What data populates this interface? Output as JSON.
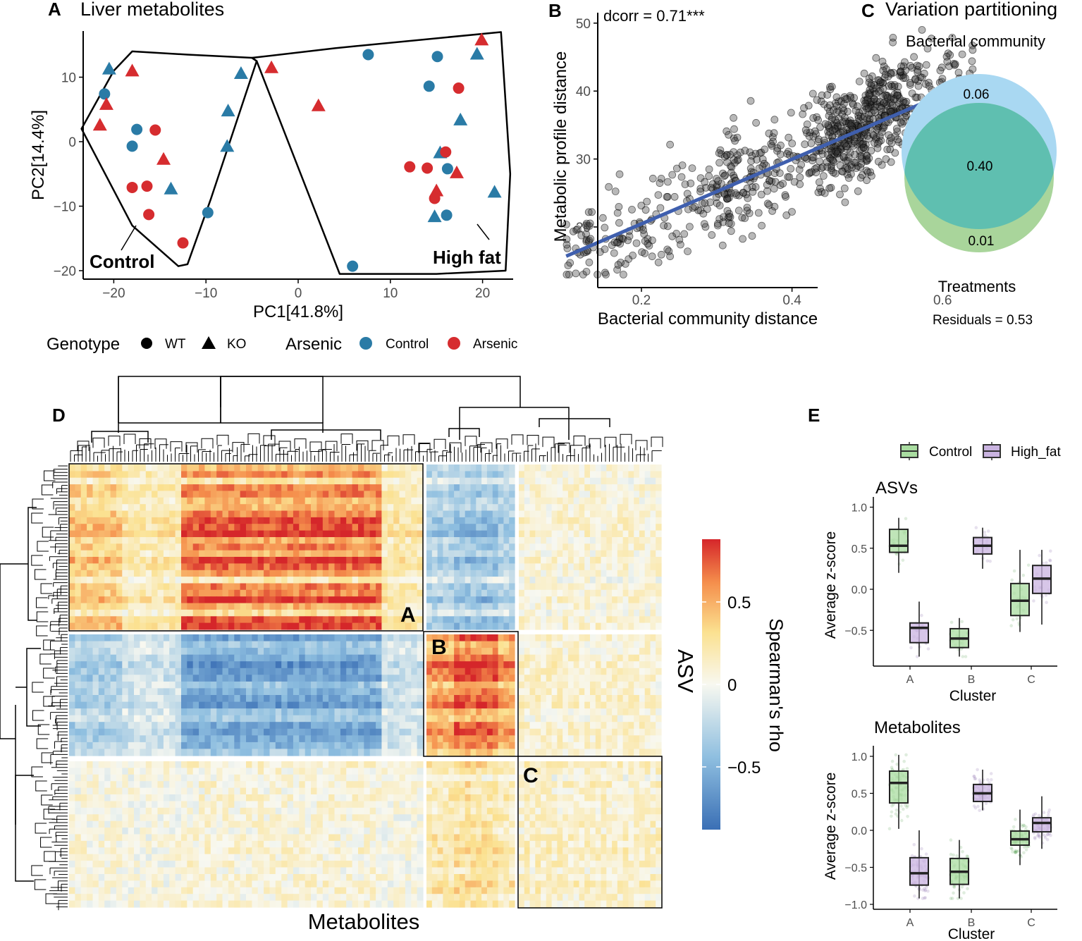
{
  "chart_data": [
    {
      "panel": "A",
      "type": "scatter",
      "title": "Liver metabolites",
      "xlabel": "PC1[41.8%]",
      "ylabel": "PC2[14.4%]",
      "xlim": [
        -24,
        24
      ],
      "ylim": [
        -21,
        17
      ],
      "xticks": [
        -20,
        -10,
        0,
        10,
        20
      ],
      "yticks": [
        -20,
        -10,
        0,
        10
      ],
      "hull_labels": [
        "Control",
        "High fat"
      ],
      "hulls": [
        [
          [
            -23.5,
            2
          ],
          [
            -20,
            11
          ],
          [
            -18,
            14
          ],
          [
            -12,
            13.5
          ],
          [
            -5,
            13
          ],
          [
            -4.5,
            12.5
          ],
          [
            -9.5,
            -9
          ],
          [
            -12,
            -19
          ],
          [
            -13,
            -19.3
          ],
          [
            -18,
            -13
          ],
          [
            -23.5,
            2
          ]
        ],
        [
          [
            -5,
            13
          ],
          [
            -4.5,
            12.5
          ],
          [
            4.5,
            -20.5
          ],
          [
            15,
            -20.5
          ],
          [
            22.5,
            -20
          ],
          [
            23,
            -5
          ],
          [
            22,
            17
          ],
          [
            4,
            14.5
          ],
          [
            -5,
            13
          ]
        ]
      ],
      "points": [
        {
          "x": -20.5,
          "y": 11.3,
          "genotype": "KO",
          "arsenic": "Control"
        },
        {
          "x": -18,
          "y": 11,
          "genotype": "KO",
          "arsenic": "Arsenic"
        },
        {
          "x": -21,
          "y": 7.4,
          "genotype": "WT",
          "arsenic": "Control"
        },
        {
          "x": -20.8,
          "y": 5.8,
          "genotype": "KO",
          "arsenic": "Arsenic"
        },
        {
          "x": -21.5,
          "y": 2.6,
          "genotype": "KO",
          "arsenic": "Arsenic"
        },
        {
          "x": -17.5,
          "y": 1.9,
          "genotype": "WT",
          "arsenic": "Control"
        },
        {
          "x": -15.5,
          "y": 1.8,
          "genotype": "WT",
          "arsenic": "Arsenic"
        },
        {
          "x": -18,
          "y": -0.7,
          "genotype": "WT",
          "arsenic": "Control"
        },
        {
          "x": -14.6,
          "y": -2.7,
          "genotype": "KO",
          "arsenic": "Arsenic"
        },
        {
          "x": -18,
          "y": -7.1,
          "genotype": "WT",
          "arsenic": "Arsenic"
        },
        {
          "x": -16.4,
          "y": -6.9,
          "genotype": "WT",
          "arsenic": "Arsenic"
        },
        {
          "x": -13.8,
          "y": -7.3,
          "genotype": "KO",
          "arsenic": "Control"
        },
        {
          "x": -16.2,
          "y": -11.3,
          "genotype": "WT",
          "arsenic": "Arsenic"
        },
        {
          "x": -9.8,
          "y": -11,
          "genotype": "WT",
          "arsenic": "Control"
        },
        {
          "x": -12.5,
          "y": -15.7,
          "genotype": "WT",
          "arsenic": "Arsenic"
        },
        {
          "x": -6.2,
          "y": 10.6,
          "genotype": "KO",
          "arsenic": "Control"
        },
        {
          "x": -7.6,
          "y": 4.8,
          "genotype": "KO",
          "arsenic": "Control"
        },
        {
          "x": -7.7,
          "y": -0.7,
          "genotype": "KO",
          "arsenic": "Control"
        },
        {
          "x": -2.9,
          "y": 11.5,
          "genotype": "KO",
          "arsenic": "Arsenic"
        },
        {
          "x": 2.2,
          "y": 5.6,
          "genotype": "KO",
          "arsenic": "Arsenic"
        },
        {
          "x": 7.6,
          "y": 13.5,
          "genotype": "WT",
          "arsenic": "Control"
        },
        {
          "x": 15.1,
          "y": 13.2,
          "genotype": "WT",
          "arsenic": "Control"
        },
        {
          "x": 14.2,
          "y": 8.6,
          "genotype": "WT",
          "arsenic": "Control"
        },
        {
          "x": 17.4,
          "y": 8.3,
          "genotype": "WT",
          "arsenic": "Arsenic"
        },
        {
          "x": 19.4,
          "y": 13.6,
          "genotype": "KO",
          "arsenic": "Control"
        },
        {
          "x": 19.9,
          "y": 15.8,
          "genotype": "KO",
          "arsenic": "Arsenic"
        },
        {
          "x": 17.6,
          "y": 3.4,
          "genotype": "KO",
          "arsenic": "Control"
        },
        {
          "x": 15.4,
          "y": -1.7,
          "genotype": "KO",
          "arsenic": "Control"
        },
        {
          "x": 16,
          "y": -1.6,
          "genotype": "WT",
          "arsenic": "Arsenic"
        },
        {
          "x": 12.1,
          "y": -3.9,
          "genotype": "WT",
          "arsenic": "Arsenic"
        },
        {
          "x": 14,
          "y": -4.1,
          "genotype": "WT",
          "arsenic": "Arsenic"
        },
        {
          "x": 16.2,
          "y": -4.2,
          "genotype": "WT",
          "arsenic": "Control"
        },
        {
          "x": 17.2,
          "y": -4.8,
          "genotype": "KO",
          "arsenic": "Arsenic"
        },
        {
          "x": 15,
          "y": -7.6,
          "genotype": "KO",
          "arsenic": "Arsenic"
        },
        {
          "x": 14.8,
          "y": -8.8,
          "genotype": "WT",
          "arsenic": "Arsenic"
        },
        {
          "x": 21.3,
          "y": -7.8,
          "genotype": "KO",
          "arsenic": "Control"
        },
        {
          "x": 14.8,
          "y": -11.6,
          "genotype": "KO",
          "arsenic": "Control"
        },
        {
          "x": 16.1,
          "y": -11.4,
          "genotype": "WT",
          "arsenic": "Control"
        },
        {
          "x": 5.9,
          "y": -19.3,
          "genotype": "WT",
          "arsenic": "Control"
        }
      ],
      "legend": {
        "genotype_title": "Genotype",
        "genotype_items": [
          "WT",
          "KO"
        ],
        "arsenic_title": "Arsenic",
        "arsenic_items": [
          "Control",
          "Arsenic"
        ],
        "colors": {
          "Control": "#2a7ba6",
          "Arsenic": "#d62c2f"
        }
      }
    },
    {
      "panel": "B",
      "type": "scatter",
      "annotation": "dcorr = 0.71***",
      "xlabel": "Bacterial community distance",
      "ylabel": "Metabolic profile distance",
      "xlim": [
        0.08,
        0.66
      ],
      "ylim": [
        12,
        51
      ],
      "xticks": [
        0.2,
        0.4,
        0.6
      ],
      "yticks": [
        20,
        30,
        40,
        50
      ],
      "fit_line": {
        "x": [
          0.1,
          0.63
        ],
        "y": [
          15.7,
          40.9
        ],
        "color": "#3f5fae"
      },
      "point_count": 900,
      "point_color": "#333333"
    },
    {
      "panel": "C",
      "type": "venn",
      "title": "Variation partitioning",
      "set_labels": [
        "Bacterial community",
        "Treatments"
      ],
      "values": {
        "bacterial_only": 0.06,
        "shared": 0.4,
        "treatments_only": 0.01
      },
      "value_labels": [
        "0.06",
        "0.40",
        "0.01"
      ],
      "residuals_label": "Residuals = 0.53",
      "colors": {
        "bacterial": "#a9d8f2",
        "treatments": "#a9d59b",
        "shared": "#5fbfb0"
      }
    },
    {
      "panel": "D",
      "type": "heatmap",
      "xlabel": "Metabolites",
      "ylabel": "ASV",
      "colorbar_title": "Spearman's rho",
      "colorbar_ticks": [
        0.5,
        0,
        -0.5
      ],
      "colorbar_tick_labels": [
        "0.5",
        "0",
        "−0.5"
      ],
      "colorbar_range": [
        -0.88,
        0.88
      ],
      "cluster_labels": [
        "A",
        "B",
        "C"
      ],
      "row_blocks": [
        25,
        18,
        22
      ],
      "col_blocks": [
        170,
        44,
        69
      ],
      "block_mean_rho": [
        [
          0.45,
          -0.3,
          0.08
        ],
        [
          -0.35,
          0.5,
          0.1
        ],
        [
          0.05,
          0.2,
          0.12
        ]
      ],
      "colors": [
        "#3a6fb5",
        "#8fbfe0",
        "#f8f8f0",
        "#fbe190",
        "#f58f4c",
        "#d5262a"
      ]
    },
    {
      "panel": "E",
      "type": "boxplot",
      "legend": [
        "Control",
        "High_fat"
      ],
      "colors": {
        "Control": "#a9dca0",
        "High_fat": "#c9b3e0"
      },
      "xlabel": "Cluster",
      "ylabel": "Average z-score",
      "categories": [
        "A",
        "B",
        "C"
      ],
      "subplots": [
        {
          "title": "ASVs",
          "ylim": [
            -0.95,
            1.08
          ],
          "yticks": [
            1.0,
            0.5,
            0.0,
            -0.5
          ],
          "ytick_labels": [
            "1.0",
            "0.5",
            "0.0",
            "−0.5"
          ],
          "boxes": [
            {
              "cluster": "A",
              "group": "Control",
              "min": 0.2,
              "q1": 0.45,
              "median": 0.53,
              "q3": 0.73,
              "max": 0.87
            },
            {
              "cluster": "A",
              "group": "High_fat",
              "min": -0.82,
              "q1": -0.65,
              "median": -0.47,
              "q3": -0.41,
              "max": -0.15
            },
            {
              "cluster": "B",
              "group": "Control",
              "min": -0.82,
              "q1": -0.71,
              "median": -0.6,
              "q3": -0.48,
              "max": -0.35
            },
            {
              "cluster": "B",
              "group": "High_fat",
              "min": 0.25,
              "q1": 0.43,
              "median": 0.53,
              "q3": 0.63,
              "max": 0.75
            },
            {
              "cluster": "C",
              "group": "Control",
              "min": -0.52,
              "q1": -0.32,
              "median": -0.14,
              "q3": 0.07,
              "max": 0.48
            },
            {
              "cluster": "C",
              "group": "High_fat",
              "min": -0.43,
              "q1": -0.05,
              "median": 0.13,
              "q3": 0.29,
              "max": 0.48
            }
          ]
        },
        {
          "title": "Metabolites",
          "ylim": [
            -1.08,
            1.08
          ],
          "yticks": [
            1.0,
            0.5,
            0.0,
            -0.5,
            -1.0
          ],
          "ytick_labels": [
            "1.0",
            "0.5",
            "0.0",
            "−0.5",
            "−1.0"
          ],
          "boxes": [
            {
              "cluster": "A",
              "group": "Control",
              "min": 0.02,
              "q1": 0.37,
              "median": 0.64,
              "q3": 0.8,
              "max": 1.02
            },
            {
              "cluster": "A",
              "group": "High_fat",
              "min": -0.92,
              "q1": -0.74,
              "median": -0.58,
              "q3": -0.37,
              "max": 0.0
            },
            {
              "cluster": "B",
              "group": "Control",
              "min": -0.92,
              "q1": -0.73,
              "median": -0.56,
              "q3": -0.38,
              "max": -0.13
            },
            {
              "cluster": "B",
              "group": "High_fat",
              "min": 0.27,
              "q1": 0.39,
              "median": 0.5,
              "q3": 0.62,
              "max": 0.82
            },
            {
              "cluster": "C",
              "group": "Control",
              "min": -0.47,
              "q1": -0.2,
              "median": -0.12,
              "q3": -0.01,
              "max": 0.28
            },
            {
              "cluster": "C",
              "group": "High_fat",
              "min": -0.25,
              "q1": -0.02,
              "median": 0.1,
              "q3": 0.17,
              "max": 0.46
            }
          ]
        }
      ]
    }
  ]
}
